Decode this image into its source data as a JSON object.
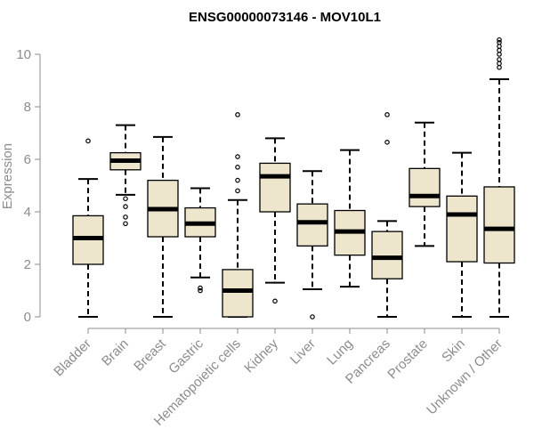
{
  "chart_data": {
    "type": "boxplot",
    "title": "ENSG00000073146 - MOV10L1",
    "xlabel": "",
    "ylabel": "Expression",
    "ylim": [
      0,
      10.5
    ],
    "yticks": [
      0,
      2,
      4,
      6,
      8,
      10
    ],
    "colors": {
      "box_fill": "#ede5cc",
      "stroke": "#000000",
      "axis": "#8c8c8c"
    },
    "categories": [
      "Bladder",
      "Brain",
      "Breast",
      "Gastric",
      "Hematopoietic cells",
      "Kidney",
      "Liver",
      "Lung",
      "Pancreas",
      "Prostate",
      "Skin",
      "Unknown / Other"
    ],
    "boxes": [
      {
        "name": "Bladder",
        "q1": 2.0,
        "median": 3.0,
        "q3": 3.85,
        "whisker_low": 0.0,
        "whisker_high": 5.25,
        "outliers": [
          6.7
        ]
      },
      {
        "name": "Brain",
        "q1": 5.6,
        "median": 5.95,
        "q3": 6.25,
        "whisker_low": 4.65,
        "whisker_high": 7.3,
        "outliers": [
          4.5,
          4.2,
          3.8,
          3.55
        ]
      },
      {
        "name": "Breast",
        "q1": 3.05,
        "median": 4.1,
        "q3": 5.2,
        "whisker_low": 0.0,
        "whisker_high": 6.85,
        "outliers": []
      },
      {
        "name": "Gastric",
        "q1": 3.05,
        "median": 3.55,
        "q3": 4.15,
        "whisker_low": 1.5,
        "whisker_high": 4.9,
        "outliers": [
          1.1,
          1.0
        ]
      },
      {
        "name": "Hematopoietic cells",
        "q1": 0.0,
        "median": 1.0,
        "q3": 1.8,
        "whisker_low": 0.0,
        "whisker_high": 4.45,
        "outliers": [
          7.7,
          6.1,
          5.7,
          5.2,
          4.8
        ]
      },
      {
        "name": "Kidney",
        "q1": 4.0,
        "median": 5.35,
        "q3": 5.85,
        "whisker_low": 1.3,
        "whisker_high": 6.8,
        "outliers": [
          0.6
        ]
      },
      {
        "name": "Liver",
        "q1": 2.7,
        "median": 3.6,
        "q3": 4.3,
        "whisker_low": 1.05,
        "whisker_high": 5.55,
        "outliers": [
          0.0
        ]
      },
      {
        "name": "Lung",
        "q1": 2.35,
        "median": 3.25,
        "q3": 4.05,
        "whisker_low": 1.15,
        "whisker_high": 6.35,
        "outliers": []
      },
      {
        "name": "Pancreas",
        "q1": 1.45,
        "median": 2.25,
        "q3": 3.25,
        "whisker_low": 0.0,
        "whisker_high": 3.65,
        "outliers": [
          7.7,
          6.65
        ]
      },
      {
        "name": "Prostate",
        "q1": 4.2,
        "median": 4.6,
        "q3": 5.65,
        "whisker_low": 2.7,
        "whisker_high": 7.4,
        "outliers": []
      },
      {
        "name": "Skin",
        "q1": 2.1,
        "median": 3.9,
        "q3": 4.6,
        "whisker_low": 0.0,
        "whisker_high": 6.25,
        "outliers": []
      },
      {
        "name": "Unknown / Other",
        "q1": 2.05,
        "median": 3.35,
        "q3": 4.95,
        "whisker_low": 0.0,
        "whisker_high": 9.05,
        "outliers": [
          9.5,
          9.65,
          9.8,
          10.0,
          10.15,
          10.3,
          10.45,
          10.55
        ]
      }
    ]
  }
}
